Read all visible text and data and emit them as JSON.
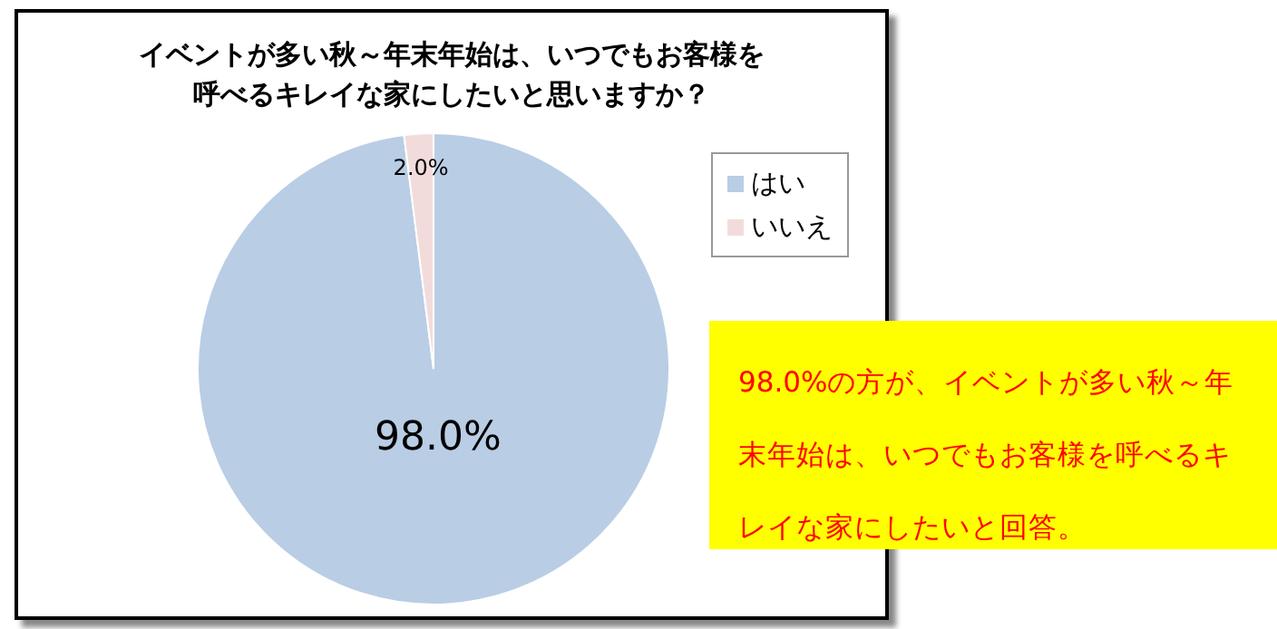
{
  "chart_data": {
    "type": "pie",
    "title": "イベントが多い秋～年末年始は、いつでもお客様を呼べるキレイな家にしたいと思いますか？",
    "categories": [
      "はい",
      "いいえ"
    ],
    "values": [
      98.0,
      2.0
    ],
    "colors": [
      "#b9cde5",
      "#f2dcdb"
    ],
    "value_labels": [
      "98.0%",
      "2.0%"
    ],
    "legend": "top right",
    "annotations": [
      "98.0%の方が、イベントが多い秋～年末年始は、いつでもお客様を呼べるキレイな家にしたいと回答。"
    ]
  }
}
